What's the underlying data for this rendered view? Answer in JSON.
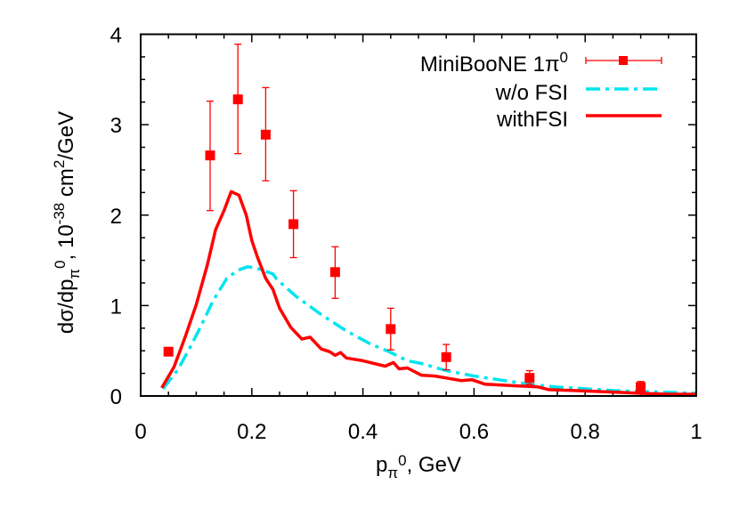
{
  "chart_data": {
    "type": "line",
    "title": "",
    "xlabel": "p_π0, GeV",
    "ylabel": "dσ/dp_π0, 10^-38 cm^2/GeV",
    "xlim": [
      0,
      1
    ],
    "ylim": [
      0,
      4
    ],
    "x_ticks": [
      "0",
      "0.2",
      "0.4",
      "0.6",
      "0.8",
      "1"
    ],
    "y_ticks": [
      "0",
      "1",
      "2",
      "3",
      "4"
    ],
    "grid": false,
    "legend_position": "top-right",
    "series": [
      {
        "name": "MiniBooNE 1π0",
        "kind": "points-with-errorbars",
        "color": "#ff0000",
        "x": [
          0.05,
          0.125,
          0.175,
          0.225,
          0.275,
          0.35,
          0.45,
          0.55,
          0.7,
          0.9
        ],
        "y": [
          0.49,
          2.66,
          3.28,
          2.89,
          1.9,
          1.37,
          0.74,
          0.43,
          0.2,
          0.1
        ],
        "y_err_low": [
          0.49,
          2.05,
          2.68,
          2.38,
          1.53,
          1.08,
          0.51,
          0.29,
          0.13,
          0.05
        ],
        "y_err_high": [
          0.49,
          3.26,
          3.89,
          3.41,
          2.27,
          1.65,
          0.97,
          0.57,
          0.28,
          0.16
        ]
      },
      {
        "name": "w/o FSI",
        "kind": "dash-dot-line",
        "color": "#00e5ee",
        "x": [
          0.04,
          0.067,
          0.09,
          0.11,
          0.13,
          0.155,
          0.175,
          0.193,
          0.21,
          0.238,
          0.245,
          0.28,
          0.325,
          0.37,
          0.415,
          0.447,
          0.48,
          0.505,
          0.55,
          0.6,
          0.655,
          0.7,
          0.745,
          0.8,
          0.85,
          0.9,
          0.95,
          1.0
        ],
        "y": [
          0.08,
          0.29,
          0.55,
          0.79,
          1.05,
          1.3,
          1.39,
          1.43,
          1.41,
          1.35,
          1.29,
          1.1,
          0.9,
          0.72,
          0.57,
          0.49,
          0.39,
          0.36,
          0.28,
          0.22,
          0.17,
          0.13,
          0.1,
          0.08,
          0.06,
          0.05,
          0.04,
          0.03
        ]
      },
      {
        "name": "withFSI",
        "kind": "solid-line",
        "color": "#ff0000",
        "x": [
          0.038,
          0.06,
          0.08,
          0.1,
          0.12,
          0.135,
          0.15,
          0.163,
          0.177,
          0.19,
          0.2,
          0.21,
          0.225,
          0.238,
          0.25,
          0.27,
          0.29,
          0.305,
          0.325,
          0.34,
          0.35,
          0.36,
          0.37,
          0.4,
          0.44,
          0.455,
          0.465,
          0.48,
          0.505,
          0.53,
          0.577,
          0.596,
          0.62,
          0.68,
          0.715,
          0.735,
          0.78,
          0.82,
          0.86,
          0.9,
          0.95,
          1.0
        ],
        "y": [
          0.09,
          0.32,
          0.65,
          1.01,
          1.45,
          1.84,
          2.05,
          2.26,
          2.22,
          2.0,
          1.72,
          1.54,
          1.3,
          1.18,
          0.97,
          0.76,
          0.63,
          0.65,
          0.52,
          0.49,
          0.45,
          0.48,
          0.42,
          0.39,
          0.33,
          0.37,
          0.3,
          0.31,
          0.23,
          0.22,
          0.17,
          0.18,
          0.13,
          0.11,
          0.1,
          0.07,
          0.06,
          0.05,
          0.04,
          0.03,
          0.02,
          0.02
        ]
      }
    ]
  },
  "axes": {
    "xlabel_main": "p",
    "xlabel_sub": "π",
    "xlabel_sup": "0",
    "xlabel_tail": ", GeV",
    "ylabel_a": "dσ/dp",
    "ylabel_sub": "π",
    "ylabel_sup": "0",
    "ylabel_b": ", 10",
    "ylabel_exp": "-38",
    "ylabel_c": " cm",
    "ylabel_exp2": "2",
    "ylabel_d": "/GeV"
  },
  "legend": {
    "entry1_main": "MiniBooNE 1π",
    "entry1_sup": "0",
    "entry2": "w/o FSI",
    "entry3": "withFSI"
  }
}
